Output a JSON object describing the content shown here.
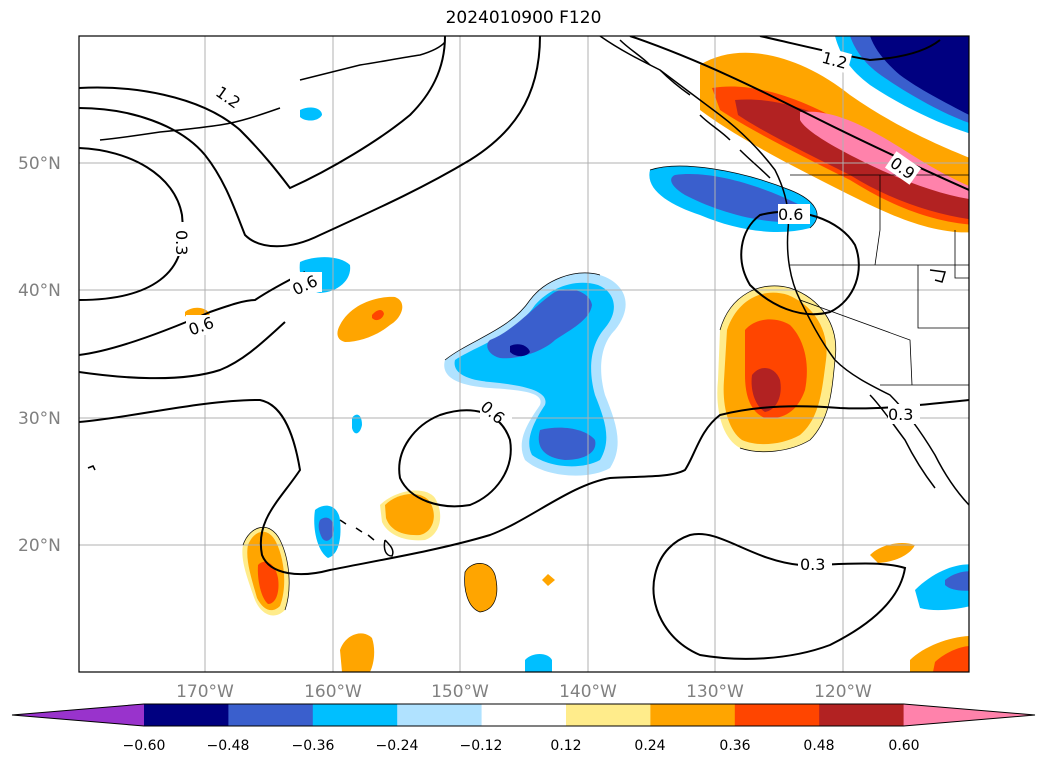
{
  "title": "2024010900 F120",
  "lat_labels": [
    "50°N",
    "40°N",
    "30°N",
    "20°N"
  ],
  "lon_labels": [
    "170°W",
    "160°W",
    "150°W",
    "140°W",
    "130°W",
    "120°W"
  ],
  "contour_labels": [
    "1.2",
    "0.3",
    "0.6",
    "0.6",
    "0.6",
    "0.6",
    "0.3",
    "0.3",
    "0.9",
    "1.2"
  ],
  "colorbar": {
    "ticks": [
      "−0.60",
      "−0.48",
      "−0.36",
      "−0.24",
      "−0.12",
      "0.12",
      "0.24",
      "0.36",
      "0.48",
      "0.60"
    ],
    "colors": [
      "#9933cc",
      "#000080",
      "#3a5fcd",
      "#00bfff",
      "#b0e2ff",
      "#ffffff",
      "#ffec8b",
      "#ffa500",
      "#ff4500",
      "#b22222",
      "#ff82ab"
    ]
  }
}
